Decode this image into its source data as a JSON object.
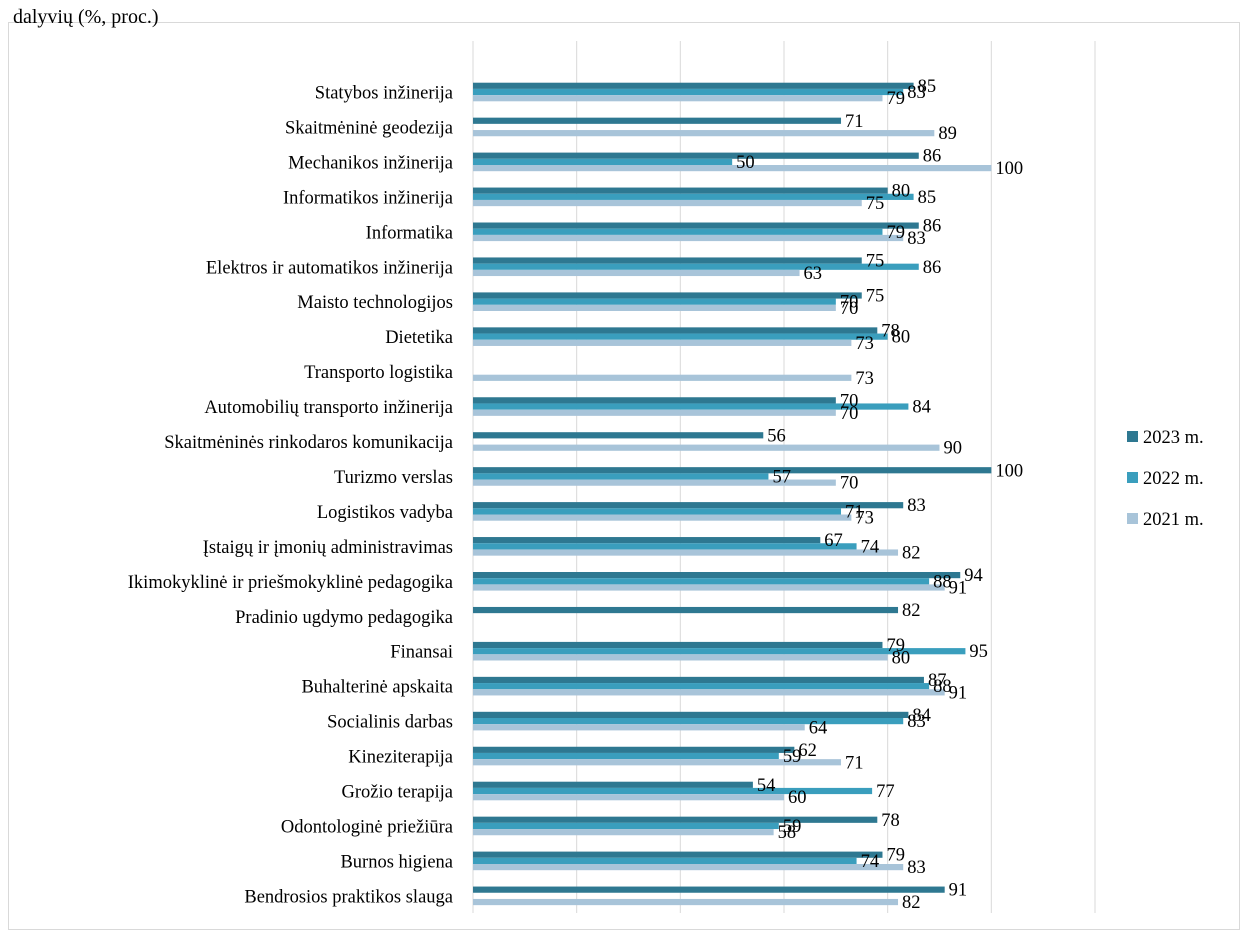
{
  "header": {
    "caption": "dalyvių (%, proc.)"
  },
  "chart_data": {
    "type": "bar",
    "orientation": "horizontal",
    "title": "",
    "xlabel": "",
    "ylabel": "",
    "xlim": [
      0,
      120
    ],
    "grid": true,
    "legend_position": "right",
    "colors": {
      "2023 m.": "#2e7891",
      "2022 m.": "#3a9ebd",
      "2021 m.": "#a8c4d9"
    },
    "categories": [
      "Statybos inžinerija",
      "Skaitmėninė geodezija",
      "Mechanikos inžinerija",
      "Informatikos inžinerija",
      "Informatika",
      "Elektros ir automatikos inžinerija",
      "Maisto technologijos",
      "Dietetika",
      "Transporto logistika",
      "Automobilių transporto inžinerija",
      "Skaitmėninės rinkodaros komunikacija",
      "Turizmo verslas",
      "Logistikos vadyba",
      "Įstaigų ir įmonių administravimas",
      "Ikimokyklinė ir priešmokyklinė pedagogika",
      "Pradinio ugdymo pedagogika",
      "Finansai",
      "Buhalterinė apskaita",
      "Socialinis darbas",
      "Kineziterapija",
      "Grožio terapija",
      "Odontologinė priežiūra",
      "Burnos higiena",
      "Bendrosios praktikos slauga"
    ],
    "series": [
      {
        "name": "2023 m.",
        "values": [
          85,
          71,
          86,
          80,
          86,
          75,
          75,
          78,
          null,
          70,
          56,
          100,
          83,
          67,
          94,
          82,
          79,
          87,
          84,
          62,
          54,
          78,
          79,
          91
        ]
      },
      {
        "name": "2022 m.",
        "values": [
          83,
          null,
          50,
          85,
          79,
          86,
          70,
          80,
          null,
          84,
          null,
          57,
          71,
          74,
          88,
          null,
          95,
          88,
          83,
          59,
          77,
          59,
          74,
          null
        ]
      },
      {
        "name": "2021 m.",
        "values": [
          79,
          89,
          100,
          75,
          83,
          63,
          70,
          73,
          73,
          70,
          90,
          70,
          73,
          82,
          91,
          null,
          80,
          91,
          64,
          71,
          60,
          58,
          83,
          82
        ]
      }
    ]
  }
}
